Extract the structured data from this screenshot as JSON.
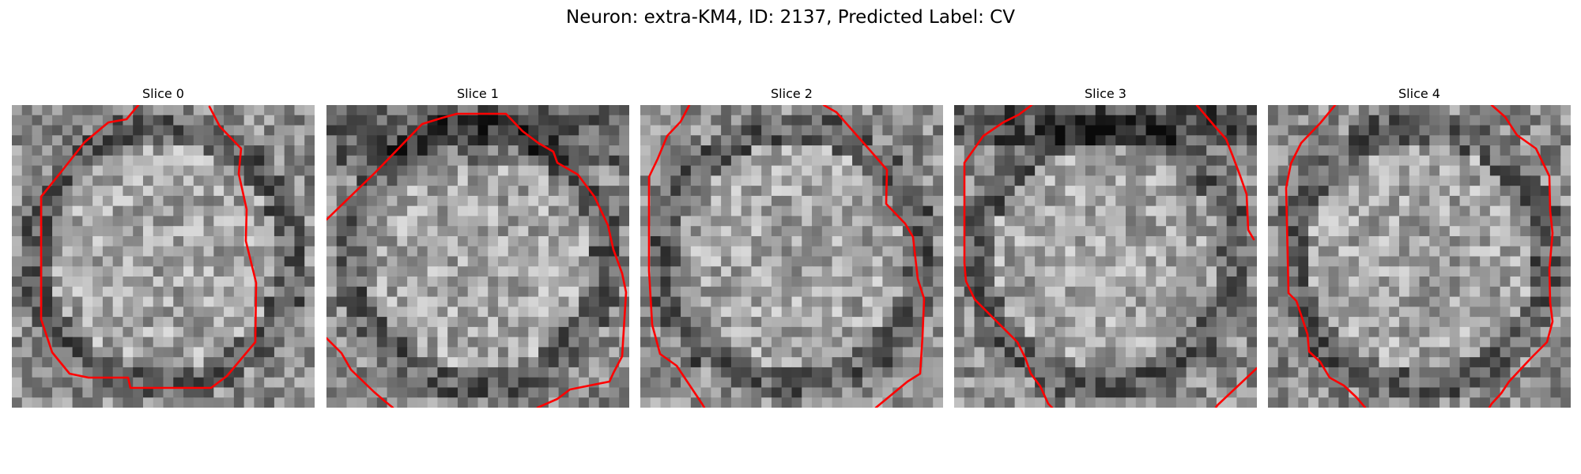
{
  "figure": {
    "title": "Neuron: extra-KM4, ID: 2137, Predicted Label: CV"
  },
  "colors": {
    "background": "#ffffff",
    "contour": "#ff0000",
    "colormap": "grayscale"
  },
  "slices": [
    {
      "title": "Slice 0",
      "image_icon": "grayscale-microscopy-patch",
      "overlay_icon": "red-contour-line"
    },
    {
      "title": "Slice 1",
      "image_icon": "grayscale-microscopy-patch",
      "overlay_icon": "red-contour-line"
    },
    {
      "title": "Slice 2",
      "image_icon": "grayscale-microscopy-patch",
      "overlay_icon": "red-contour-line"
    },
    {
      "title": "Slice 3",
      "image_icon": "grayscale-microscopy-patch",
      "overlay_icon": "red-contour-line"
    },
    {
      "title": "Slice 4",
      "image_icon": "grayscale-microscopy-patch",
      "overlay_icon": "red-contour-line"
    }
  ]
}
